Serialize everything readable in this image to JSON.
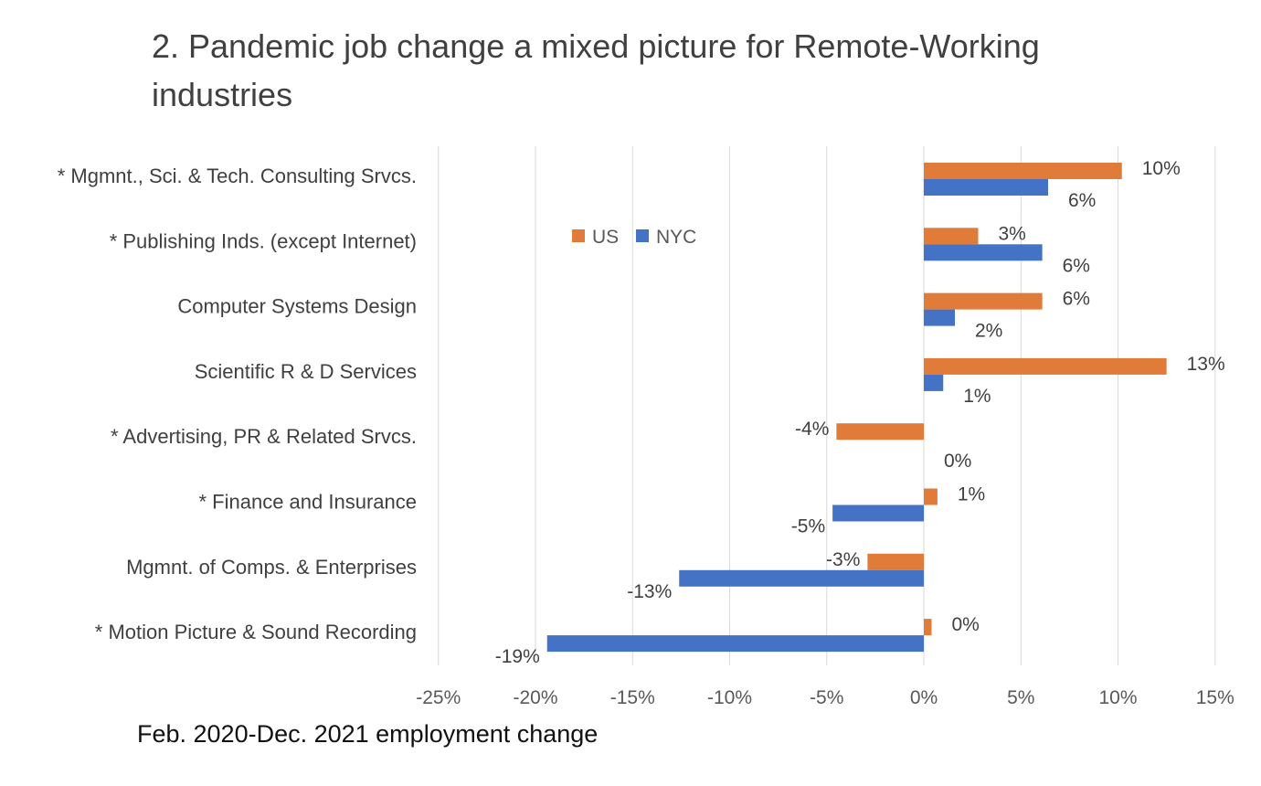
{
  "title": "2. Pandemic job change a mixed picture for Remote-Working industries",
  "colors": {
    "us": "#E07B39",
    "nyc": "#4472C4",
    "grid": "#D9D9D9"
  },
  "chart_data": {
    "type": "bar",
    "orientation": "horizontal",
    "title": "2. Pandemic job change a mixed picture for Remote-Working industries",
    "xlabel": "Feb. 2020-Dec. 2021  employment change",
    "ylabel": "",
    "xlim": [
      -25,
      15
    ],
    "x_ticks": [
      -25,
      -20,
      -15,
      -10,
      -5,
      0,
      5,
      10,
      15
    ],
    "x_tick_labels": [
      "-25%",
      "-20%",
      "-15%",
      "-10%",
      "-5%",
      "0%",
      "5%",
      "10%",
      "15%"
    ],
    "grid": "vertical",
    "legend_position": "top-center",
    "categories": [
      "* Mgmnt., Sci. & Tech. Consulting Srvcs.",
      "* Publishing Inds. (except Internet)",
      "Computer Systems Design",
      "Scientific R & D Services",
      "* Advertising, PR & Related Srvcs.",
      "* Finance and Insurance",
      "Mgmnt. of Comps. & Enterprises",
      "* Motion Picture & Sound Recording"
    ],
    "series": [
      {
        "name": "US",
        "color": "#E07B39",
        "values": [
          10.2,
          2.8,
          6.1,
          12.5,
          -4.5,
          0.7,
          -2.9,
          0.4
        ],
        "labels": [
          "10%",
          "3%",
          "6%",
          "13%",
          "-4%",
          "1%",
          "-3%",
          "0%"
        ]
      },
      {
        "name": "NYC",
        "color": "#4472C4",
        "values": [
          6.4,
          6.1,
          1.6,
          1.0,
          0.0,
          -4.7,
          -12.6,
          -19.4
        ],
        "labels": [
          "6%",
          "6%",
          "2%",
          "1%",
          "0%",
          "-5%",
          "-13%",
          "-19%"
        ]
      }
    ]
  }
}
